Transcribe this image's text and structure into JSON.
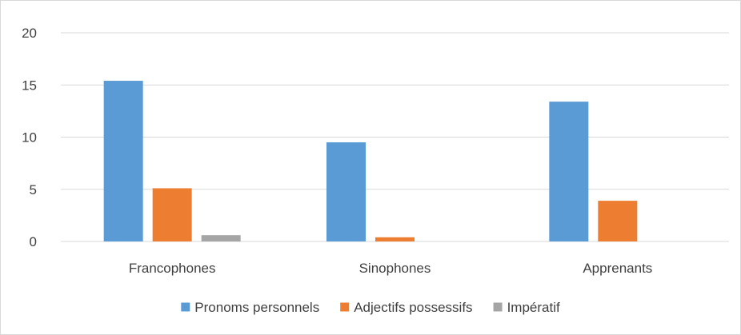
{
  "chart_data": {
    "type": "bar",
    "title": "",
    "xlabel": "",
    "ylabel": "",
    "categories": [
      "Francophones",
      "Sinophones",
      "Apprenants"
    ],
    "series": [
      {
        "name": "Pronoms personnels",
        "color": "#5B9BD5",
        "values": [
          15.4,
          9.5,
          13.4
        ]
      },
      {
        "name": "Adjectifs possessifs",
        "color": "#ED7D31",
        "values": [
          5.1,
          0.4,
          3.9
        ]
      },
      {
        "name": "Impératif",
        "color": "#A5A5A5",
        "values": [
          0.6,
          0,
          0
        ]
      }
    ],
    "ylim": [
      0,
      20
    ],
    "yticks": [
      "0",
      "5",
      "10",
      "15",
      "20"
    ],
    "grid": true,
    "gridline_color": "#D9D9D9",
    "legend_position": "bottom"
  }
}
